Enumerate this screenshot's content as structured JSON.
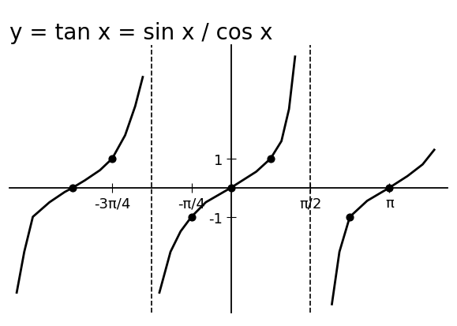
{
  "chart_data": {
    "type": "line",
    "title": "y = tan x = sin x / cos x",
    "xlim": [
      -4.4,
      4.3
    ],
    "ylim": [
      -4.3,
      4.9
    ],
    "xticks": [
      {
        "value": -2.356,
        "label": "-3π/4"
      },
      {
        "value": -0.785,
        "label": "-π/4"
      },
      {
        "value": 1.571,
        "label": "π/2"
      },
      {
        "value": 3.142,
        "label": "π"
      }
    ],
    "yticks": [
      -1,
      1
    ],
    "grid": false,
    "series": [
      {
        "type": "line",
        "color": "black",
        "line_style": "solid",
        "x": [
          -4.25,
          -4.1,
          -3.93,
          -3.6,
          -3.3,
          -3.14,
          -2.9,
          -2.6,
          -2.356,
          -2.1,
          -1.9,
          -1.75
        ],
        "values": [
          -3.6,
          -2.2,
          -1.0,
          -0.5,
          -0.15,
          0,
          0.25,
          0.6,
          1.0,
          1.8,
          2.8,
          3.8
        ]
      },
      {
        "type": "line",
        "color": "black",
        "line_style": "solid",
        "x": [
          -1.42,
          -1.2,
          -1.0,
          -0.785,
          -0.5,
          0,
          0.5,
          0.785,
          1.0,
          1.15,
          1.27
        ],
        "values": [
          -3.6,
          -2.2,
          -1.5,
          -1.0,
          -0.5,
          0,
          0.55,
          1.0,
          1.6,
          2.7,
          4.5
        ]
      },
      {
        "type": "line",
        "color": "black",
        "line_style": "solid",
        "x": [
          2.0,
          2.15,
          2.356,
          2.7,
          3.14,
          3.5,
          3.8,
          4.03
        ],
        "values": [
          -4.0,
          -2.2,
          -1.0,
          -0.45,
          0,
          0.4,
          0.8,
          1.3
        ]
      },
      {
        "type": "scatter",
        "color": "black",
        "marker": "o",
        "x": [
          -3.142,
          -2.356,
          -0.785,
          0,
          0.785,
          2.356,
          3.142
        ],
        "values": [
          0,
          1,
          -1,
          0,
          1,
          -1,
          0
        ]
      },
      {
        "type": "vline",
        "color": "black",
        "line_style": "dashed",
        "x": [
          -1.571,
          1.571
        ]
      }
    ]
  }
}
